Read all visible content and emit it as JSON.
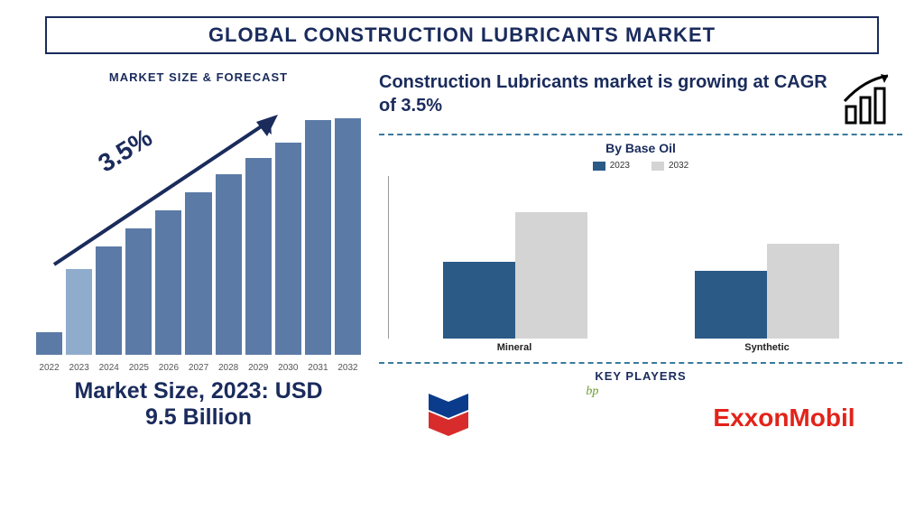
{
  "title": "GLOBAL CONSTRUCTION LUBRICANTS MARKET",
  "left": {
    "label": "MARKET SIZE & FORECAST",
    "trend_pct": "3.5%",
    "market_size_line1": "Market Size, 2023: USD",
    "market_size_line2": "9.5 Billion",
    "forecast": {
      "type": "bar",
      "years": [
        "2022",
        "2023",
        "2024",
        "2025",
        "2026",
        "2027",
        "2028",
        "2029",
        "2030",
        "2031",
        "2032"
      ],
      "values": [
        25,
        95,
        120,
        140,
        160,
        180,
        200,
        218,
        235,
        260,
        262
      ],
      "bar_colors": [
        "#5b7ba6",
        "#8faccc",
        "#5b7ba6",
        "#5b7ba6",
        "#5b7ba6",
        "#5b7ba6",
        "#5b7ba6",
        "#5b7ba6",
        "#5b7ba6",
        "#5b7ba6",
        "#5b7ba6"
      ],
      "max_value": 270,
      "arrow_color": "#1a2b5c",
      "label_fontsize": 10,
      "label_color": "#555555"
    }
  },
  "right": {
    "cagr_text": "Construction Lubricants market is growing at CAGR of 3.5%",
    "divider_color": "#3a7a9c",
    "base_oil": {
      "title": "By Base Oil",
      "type": "grouped-bar",
      "legend": [
        {
          "label": "2023",
          "color": "#2b5a87"
        },
        {
          "label": "2032",
          "color": "#d4d4d4"
        }
      ],
      "categories": [
        "Mineral",
        "Synthetic"
      ],
      "series_2023": [
        85,
        75
      ],
      "series_2032": [
        140,
        105
      ],
      "max_value": 180,
      "axis_color": "#999999",
      "label_fontsize": 11
    },
    "key_players": {
      "label": "KEY PLAYERS",
      "players": [
        "Chevron",
        "bp",
        "ExxonMobil"
      ],
      "bp_green": "#6a9c2f",
      "bp_yellow": "#f5d400",
      "chevron_blue": "#0b3c8c",
      "chevron_red": "#d82c2c",
      "exxon_red": "#e2231a"
    }
  }
}
